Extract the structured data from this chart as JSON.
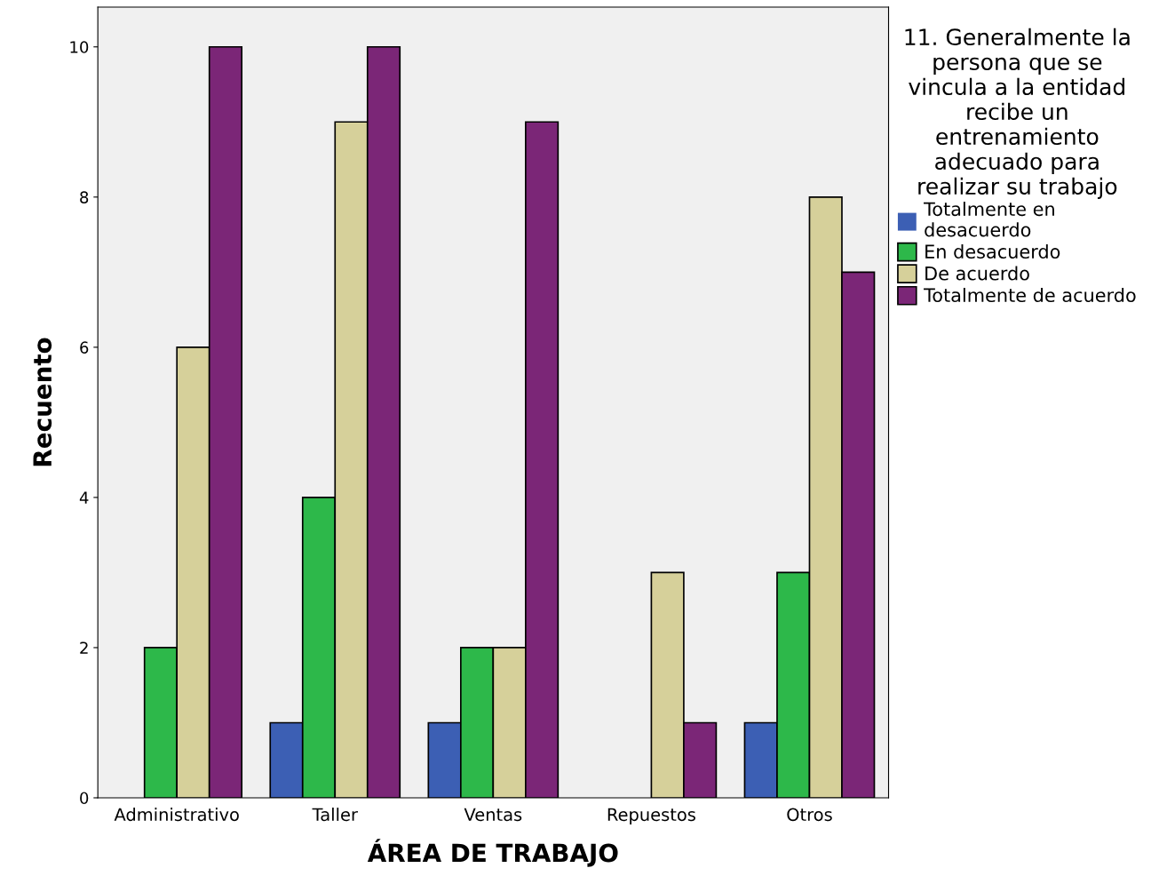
{
  "chart_data": {
    "type": "bar",
    "xlabel": "ÁREA DE TRABAJO",
    "ylabel": "Recuento",
    "legend_title": "11. Generalmente la\npersona que se\nvincula a la entidad\nrecibe un\nentrenamiento\nadecuado para\nrealizar su trabajo",
    "categories": [
      "Administrativo",
      "Taller",
      "Ventas",
      "Repuestos",
      "Otros"
    ],
    "series": [
      {
        "name": "Totalmente en\ndesacuerdo",
        "color": "#3c5fb4",
        "values": [
          0,
          1,
          1,
          0,
          1
        ]
      },
      {
        "name": "En desacuerdo",
        "color": "#2db84a",
        "values": [
          2,
          4,
          2,
          0,
          3
        ]
      },
      {
        "name": "De acuerdo",
        "color": "#d6d09a",
        "values": [
          6,
          9,
          2,
          3,
          8
        ]
      },
      {
        "name": "Totalmente de acuerdo",
        "color": "#7b2677",
        "values": [
          10,
          10,
          9,
          1,
          7
        ]
      }
    ],
    "ylim": [
      0,
      10.53
    ],
    "yticks": [
      0,
      2,
      4,
      6,
      8,
      10
    ],
    "grid": false,
    "legend": "top right"
  }
}
